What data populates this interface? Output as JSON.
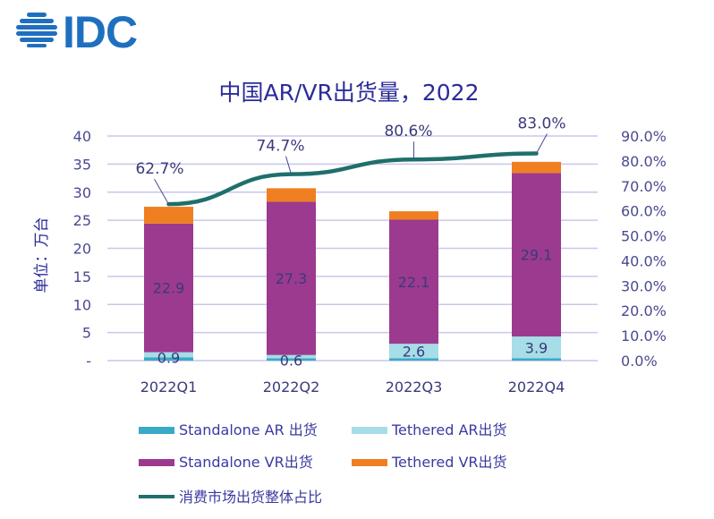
{
  "logo": {
    "text": "IDC",
    "icon": "idc-globe-icon",
    "color": "#1f6fbf"
  },
  "chart_data": {
    "type": "bar",
    "stacked": true,
    "title": "中国AR/VR出货量，2022",
    "xlabel": "",
    "ylabel": "单位：万台",
    "ylim": [
      0,
      40
    ],
    "y_ticks": [
      "-",
      "5",
      "10",
      "15",
      "20",
      "25",
      "30",
      "35",
      "40"
    ],
    "y2lim": [
      0,
      90
    ],
    "y2_ticks": [
      "0.0%",
      "10.0%",
      "20.0%",
      "30.0%",
      "40.0%",
      "50.0%",
      "60.0%",
      "70.0%",
      "80.0%",
      "90.0%"
    ],
    "grid": true,
    "categories": [
      "2022Q1",
      "2022Q2",
      "2022Q3",
      "2022Q4"
    ],
    "series": [
      {
        "name": "Standalone AR 出货",
        "color": "#3aa9c7",
        "values": [
          0.6,
          0.4,
          0.4,
          0.4
        ],
        "labels": [
          "",
          "",
          "",
          ""
        ]
      },
      {
        "name": "Tethered AR出货",
        "color": "#a6dde6",
        "values": [
          0.9,
          0.6,
          2.6,
          3.9
        ],
        "labels": [
          "0.9",
          "0.6",
          "2.6",
          "3.9"
        ]
      },
      {
        "name": "Standalone VR出货",
        "color": "#9b3a8f",
        "values": [
          22.9,
          27.3,
          22.1,
          29.1
        ],
        "labels": [
          "22.9",
          "27.3",
          "22.1",
          "29.1"
        ]
      },
      {
        "name": "Tethered VR出货",
        "color": "#f07f22",
        "values": [
          3.0,
          2.4,
          1.5,
          2.0
        ],
        "labels": [
          "",
          "",
          "",
          ""
        ]
      }
    ],
    "line_series": {
      "name": "消费市场出货整体占比",
      "color": "#1f6f6a",
      "axis": "right",
      "values": [
        62.7,
        74.7,
        80.6,
        83.0
      ],
      "labels": [
        "62.7%",
        "74.7%",
        "80.6%",
        "83.0%"
      ]
    },
    "legend": {
      "placement": "bottom"
    }
  }
}
